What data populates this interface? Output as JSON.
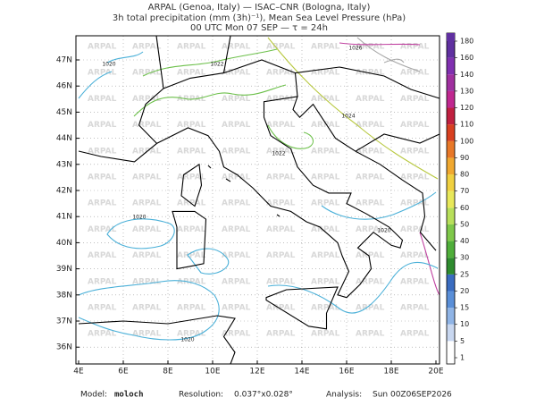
{
  "header": {
    "lines": [
      "ARPAL (Genoa, Italy)  —  ISAC–CNR (Bologna, Italy)",
      "3h total precipitation (mm (3h)⁻¹), Mean Sea Level Pressure (hPa)",
      "00 UTC Mon 07 SEP  —  τ = 24h"
    ]
  },
  "map": {
    "lon_labels": [
      "4E",
      "6E",
      "8E",
      "10E",
      "12E",
      "14E",
      "16E",
      "18E",
      "20E"
    ],
    "lat_labels": [
      "47N",
      "46N",
      "45N",
      "44N",
      "43N",
      "42N",
      "41N",
      "40N",
      "39N",
      "38N",
      "37N",
      "36N"
    ],
    "contour_labels": [
      "1020",
      "1022",
      "1026",
      "1024",
      "1022",
      "1020",
      "1020",
      "1020"
    ],
    "watermark": "ARPAL"
  },
  "colorbar": {
    "labels": [
      "1",
      "5",
      "10",
      "15",
      "20",
      "25",
      "30",
      "40",
      "50",
      "60",
      "70",
      "80",
      "90",
      "100",
      "110",
      "120",
      "130",
      "140",
      "160",
      "180"
    ],
    "colors": [
      "#ffffff",
      "#c8d7f0",
      "#8fb4e6",
      "#5a8fd8",
      "#3a6cc0",
      "#2e8b2e",
      "#4fae3a",
      "#7fc84a",
      "#b8df5a",
      "#e8e85a",
      "#f0d040",
      "#f0a830",
      "#e87828",
      "#d84020",
      "#c02040",
      "#c02890",
      "#a030a0",
      "#8030b0",
      "#6030a0"
    ]
  },
  "footer": {
    "model_label": "Model:",
    "model": "moloch",
    "resolution_label": "Resolution:",
    "resolution": "0.037°x0.028°",
    "analysis_label": "Analysis:",
    "analysis": "Sun 00Z06SEP2026"
  }
}
